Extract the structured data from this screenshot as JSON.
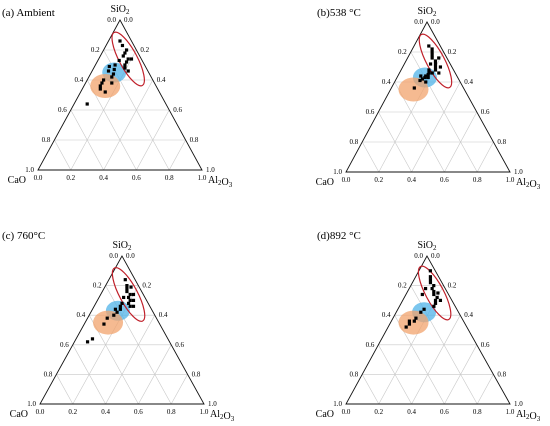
{
  "figure": {
    "vertex_labels": {
      "top": "SiO2",
      "left": "CaO",
      "right": "Al2O3"
    },
    "tick_labels": [
      "0.0",
      "0.2",
      "0.4",
      "0.6",
      "0.8",
      "1.0"
    ],
    "colors": {
      "points": "#000000",
      "blue_region": "#4fb3e8",
      "orange_region": "#f2a36c",
      "red_ellipse": "#c0202a"
    }
  },
  "chart_data": [
    {
      "type": "scatter",
      "subtype": "ternary",
      "title": "(a) Ambient",
      "axes": [
        "SiO2",
        "CaO",
        "Al2O3"
      ],
      "points": [
        [
          0.83,
          0.07,
          0.1
        ],
        [
          0.8,
          0.06,
          0.14
        ],
        [
          0.78,
          0.08,
          0.14
        ],
        [
          0.76,
          0.1,
          0.14
        ],
        [
          0.74,
          0.08,
          0.18
        ],
        [
          0.72,
          0.1,
          0.18
        ],
        [
          0.7,
          0.12,
          0.18
        ],
        [
          0.68,
          0.13,
          0.19
        ],
        [
          0.66,
          0.12,
          0.22
        ],
        [
          0.73,
          0.14,
          0.13
        ],
        [
          0.7,
          0.18,
          0.12
        ],
        [
          0.67,
          0.2,
          0.13
        ],
        [
          0.69,
          0.22,
          0.09
        ],
        [
          0.66,
          0.24,
          0.1
        ],
        [
          0.64,
          0.22,
          0.14
        ],
        [
          0.62,
          0.24,
          0.14
        ],
        [
          0.6,
          0.3,
          0.1
        ],
        [
          0.58,
          0.32,
          0.1
        ],
        [
          0.56,
          0.34,
          0.1
        ],
        [
          0.54,
          0.35,
          0.11
        ],
        [
          0.52,
          0.33,
          0.15
        ],
        [
          0.58,
          0.26,
          0.16
        ],
        [
          0.44,
          0.48,
          0.08
        ],
        [
          0.74,
          0.06,
          0.2
        ],
        [
          0.86,
          0.07,
          0.07
        ]
      ],
      "regions": [
        {
          "color": "blue",
          "center": [
            0.65,
            0.21,
            0.14
          ]
        },
        {
          "color": "orange",
          "center": [
            0.56,
            0.31,
            0.13
          ]
        },
        {
          "color": "red",
          "center": [
            0.74,
            0.08,
            0.18
          ]
        }
      ]
    },
    {
      "type": "scatter",
      "subtype": "ternary",
      "title": "(b)538 °C",
      "axes": [
        "SiO2",
        "CaO",
        "Al2O3"
      ],
      "points": [
        [
          0.84,
          0.07,
          0.09
        ],
        [
          0.8,
          0.07,
          0.13
        ],
        [
          0.78,
          0.08,
          0.14
        ],
        [
          0.76,
          0.09,
          0.15
        ],
        [
          0.74,
          0.08,
          0.18
        ],
        [
          0.72,
          0.09,
          0.19
        ],
        [
          0.7,
          0.1,
          0.2
        ],
        [
          0.68,
          0.11,
          0.21
        ],
        [
          0.66,
          0.1,
          0.24
        ],
        [
          0.72,
          0.12,
          0.16
        ],
        [
          0.68,
          0.15,
          0.17
        ],
        [
          0.66,
          0.16,
          0.18
        ],
        [
          0.65,
          0.17,
          0.18
        ],
        [
          0.64,
          0.19,
          0.17
        ],
        [
          0.63,
          0.2,
          0.17
        ],
        [
          0.64,
          0.22,
          0.14
        ],
        [
          0.62,
          0.22,
          0.16
        ],
        [
          0.61,
          0.24,
          0.15
        ],
        [
          0.63,
          0.18,
          0.19
        ],
        [
          0.6,
          0.21,
          0.19
        ],
        [
          0.56,
          0.3,
          0.14
        ],
        [
          0.76,
          0.05,
          0.19
        ],
        [
          0.7,
          0.07,
          0.23
        ],
        [
          0.82,
          0.06,
          0.12
        ],
        [
          0.66,
          0.14,
          0.2
        ]
      ],
      "regions": [
        {
          "color": "blue",
          "center": [
            0.63,
            0.2,
            0.17
          ]
        },
        {
          "color": "orange",
          "center": [
            0.55,
            0.31,
            0.14
          ]
        },
        {
          "color": "red",
          "center": [
            0.74,
            0.08,
            0.18
          ]
        }
      ]
    },
    {
      "type": "scatter",
      "subtype": "ternary",
      "title": "(c) 760°C",
      "axes": [
        "SiO2",
        "CaO",
        "Al2O3"
      ],
      "points": [
        [
          0.84,
          0.06,
          0.1
        ],
        [
          0.8,
          0.07,
          0.13
        ],
        [
          0.78,
          0.08,
          0.14
        ],
        [
          0.76,
          0.09,
          0.15
        ],
        [
          0.74,
          0.08,
          0.18
        ],
        [
          0.72,
          0.1,
          0.18
        ],
        [
          0.7,
          0.1,
          0.2
        ],
        [
          0.68,
          0.12,
          0.2
        ],
        [
          0.66,
          0.12,
          0.22
        ],
        [
          0.72,
          0.13,
          0.15
        ],
        [
          0.68,
          0.16,
          0.16
        ],
        [
          0.66,
          0.18,
          0.16
        ],
        [
          0.64,
          0.19,
          0.17
        ],
        [
          0.64,
          0.22,
          0.14
        ],
        [
          0.62,
          0.22,
          0.16
        ],
        [
          0.6,
          0.25,
          0.15
        ],
        [
          0.58,
          0.3,
          0.12
        ],
        [
          0.54,
          0.34,
          0.12
        ],
        [
          0.44,
          0.46,
          0.1
        ],
        [
          0.42,
          0.5,
          0.08
        ],
        [
          0.74,
          0.06,
          0.2
        ],
        [
          0.7,
          0.08,
          0.22
        ],
        [
          0.79,
          0.05,
          0.16
        ],
        [
          0.66,
          0.1,
          0.24
        ]
      ],
      "regions": [
        {
          "color": "blue",
          "center": [
            0.63,
            0.21,
            0.16
          ]
        },
        {
          "color": "orange",
          "center": [
            0.55,
            0.31,
            0.14
          ]
        },
        {
          "color": "red",
          "center": [
            0.74,
            0.09,
            0.17
          ]
        }
      ]
    },
    {
      "type": "scatter",
      "subtype": "ternary",
      "title": "(d)892 °C",
      "axes": [
        "SiO2",
        "CaO",
        "Al2O3"
      ],
      "points": [
        [
          0.9,
          0.03,
          0.07
        ],
        [
          0.86,
          0.05,
          0.09
        ],
        [
          0.84,
          0.06,
          0.1
        ],
        [
          0.82,
          0.07,
          0.11
        ],
        [
          0.8,
          0.06,
          0.14
        ],
        [
          0.78,
          0.08,
          0.14
        ],
        [
          0.76,
          0.08,
          0.16
        ],
        [
          0.74,
          0.09,
          0.17
        ],
        [
          0.72,
          0.08,
          0.2
        ],
        [
          0.7,
          0.1,
          0.2
        ],
        [
          0.68,
          0.11,
          0.21
        ],
        [
          0.66,
          0.13,
          0.21
        ],
        [
          0.78,
          0.12,
          0.1
        ],
        [
          0.74,
          0.16,
          0.1
        ],
        [
          0.64,
          0.2,
          0.16
        ],
        [
          0.62,
          0.23,
          0.15
        ],
        [
          0.58,
          0.28,
          0.14
        ],
        [
          0.56,
          0.3,
          0.14
        ],
        [
          0.54,
          0.34,
          0.12
        ],
        [
          0.52,
          0.37,
          0.11
        ],
        [
          0.56,
          0.33,
          0.11
        ],
        [
          0.75,
          0.06,
          0.19
        ],
        [
          0.7,
          0.07,
          0.23
        ]
      ],
      "regions": [
        {
          "color": "blue",
          "center": [
            0.62,
            0.21,
            0.17
          ]
        },
        {
          "color": "orange",
          "center": [
            0.55,
            0.31,
            0.14
          ]
        },
        {
          "color": "red",
          "center": [
            0.75,
            0.08,
            0.17
          ]
        }
      ]
    }
  ]
}
